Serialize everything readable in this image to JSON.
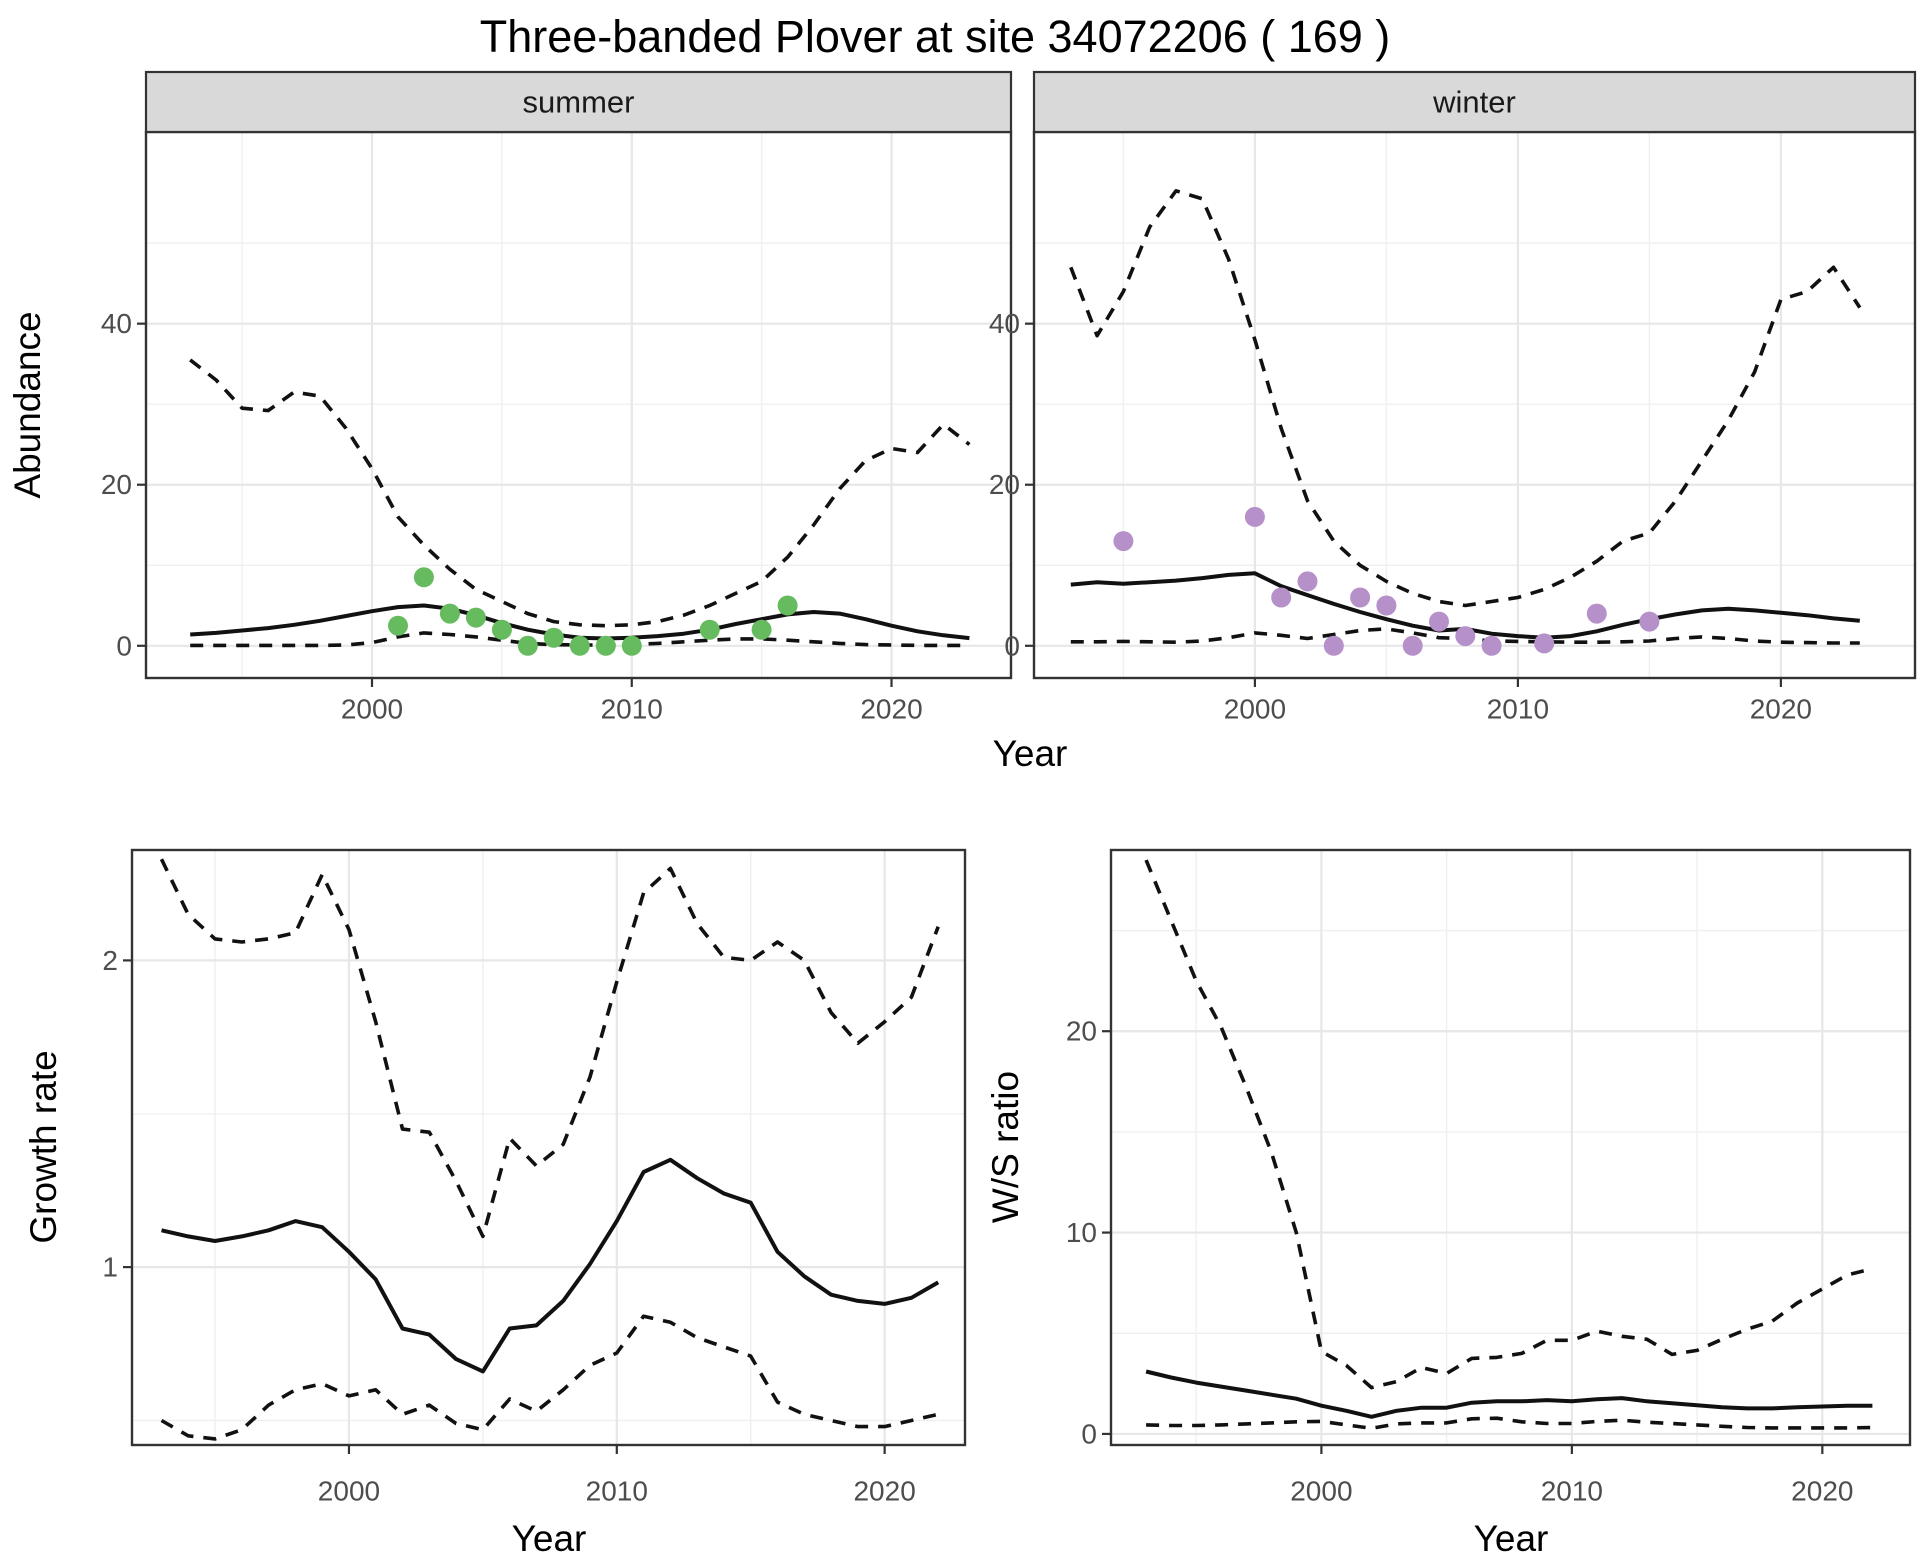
{
  "title": "Three-banded Plover at site 34072206 ( 169 )",
  "colors": {
    "summer_points": "#66BB5F",
    "winter_points": "#B690C9",
    "line": "#111111",
    "strip_fill": "#D9D9D9",
    "panel_border": "#333333",
    "grid_major": "#E7E7E7",
    "grid_minor": "#F0F0F0",
    "axis_text": "#4D4D4D",
    "tick_mark": "#333333"
  },
  "axes": {
    "top": {
      "x_title": "Year",
      "y_title": "Abundance"
    },
    "growth": {
      "x_title": "Year",
      "y_title": "Growth rate"
    },
    "ws": {
      "x_title": "Year",
      "y_title": "W/S ratio"
    }
  },
  "chart_data": [
    {
      "id": "summer",
      "type": "line",
      "facet_label": "summer",
      "xlabel": "Year",
      "ylabel": "Abundance",
      "xlim": [
        1991.3,
        2024.6
      ],
      "ylim": [
        -4,
        63.8
      ],
      "x_ticks": [
        2000,
        2010,
        2020
      ],
      "x_minor_ticks": [
        1995,
        2005,
        2015
      ],
      "y_ticks": [
        0,
        20,
        40
      ],
      "y_minor_ticks": [
        10,
        30,
        50
      ],
      "grid": true,
      "years": [
        1993,
        1994,
        1995,
        1996,
        1997,
        1998,
        1999,
        2000,
        2001,
        2002,
        2003,
        2004,
        2005,
        2006,
        2007,
        2008,
        2009,
        2010,
        2011,
        2012,
        2013,
        2014,
        2015,
        2016,
        2017,
        2018,
        2019,
        2020,
        2021,
        2022,
        2023
      ],
      "series": [
        {
          "name": "upper-95ci",
          "style": "dashed",
          "values": [
            35.5,
            33,
            29.5,
            29.2,
            31.5,
            31,
            27,
            22,
            16,
            12.5,
            9.5,
            7,
            5.5,
            4,
            3,
            2.6,
            2.5,
            2.6,
            3,
            3.8,
            5,
            6.5,
            8,
            11,
            15,
            19.5,
            23,
            24.5,
            24,
            27.5,
            25
          ]
        },
        {
          "name": "estimated-mean",
          "style": "solid",
          "values": [
            1.4,
            1.6,
            1.9,
            2.2,
            2.6,
            3.1,
            3.7,
            4.3,
            4.8,
            5.0,
            4.6,
            3.8,
            2.8,
            2.0,
            1.4,
            1.0,
            0.9,
            1.0,
            1.2,
            1.5,
            2.0,
            2.7,
            3.3,
            3.9,
            4.2,
            4.0,
            3.3,
            2.5,
            1.8,
            1.3,
            0.95
          ]
        },
        {
          "name": "lower-95ci",
          "style": "dashed",
          "values": [
            0.05,
            0.05,
            0.05,
            0.05,
            0.05,
            0.05,
            0.1,
            0.4,
            1.1,
            1.6,
            1.4,
            1.1,
            0.7,
            0.3,
            0.15,
            0.1,
            0.1,
            0.15,
            0.3,
            0.5,
            0.7,
            0.85,
            0.85,
            0.7,
            0.5,
            0.3,
            0.15,
            0.1,
            0.05,
            0.05,
            0.05
          ]
        }
      ],
      "points": {
        "name": "observed-counts",
        "color_key": "summer_points",
        "years": [
          2001,
          2002,
          2003,
          2004,
          2005,
          2006,
          2007,
          2008,
          2009,
          2010,
          2013,
          2015,
          2016
        ],
        "values": [
          2.5,
          8.5,
          4,
          3.5,
          2,
          0,
          1,
          0,
          0,
          0,
          2,
          2,
          5
        ]
      }
    },
    {
      "id": "winter",
      "type": "line",
      "facet_label": "winter",
      "xlabel": "Year",
      "ylabel": "Abundance",
      "xlim": [
        1991.6,
        2025.1
      ],
      "ylim": [
        -4,
        63.8
      ],
      "x_ticks": [
        2000,
        2010,
        2020
      ],
      "x_minor_ticks": [
        1995,
        2005,
        2015
      ],
      "y_ticks": [
        0,
        20,
        40
      ],
      "y_minor_ticks": [
        10,
        30,
        50
      ],
      "grid": true,
      "years": [
        1993,
        1994,
        1995,
        1996,
        1997,
        1998,
        1999,
        2000,
        2001,
        2002,
        2003,
        2004,
        2005,
        2006,
        2007,
        2008,
        2009,
        2010,
        2011,
        2012,
        2013,
        2014,
        2015,
        2016,
        2017,
        2018,
        2019,
        2020,
        2021,
        2022,
        2023
      ],
      "series": [
        {
          "name": "upper-95ci",
          "style": "dashed",
          "values": [
            47,
            38.5,
            44,
            52,
            56.5,
            55.5,
            48,
            38,
            27,
            18,
            13,
            10,
            8,
            6.5,
            5.5,
            5,
            5.5,
            6,
            7,
            8.5,
            10.5,
            13,
            14,
            18,
            23,
            28,
            34,
            43,
            44,
            47,
            42
          ]
        },
        {
          "name": "estimated-mean",
          "style": "solid",
          "values": [
            7.6,
            7.9,
            7.7,
            7.9,
            8.1,
            8.4,
            8.8,
            9.0,
            7.4,
            6.3,
            5.2,
            4.2,
            3.3,
            2.5,
            1.9,
            2.1,
            1.5,
            1.2,
            1.0,
            1.2,
            1.8,
            2.6,
            3.3,
            3.9,
            4.4,
            4.6,
            4.4,
            4.1,
            3.8,
            3.4,
            3.1
          ]
        },
        {
          "name": "lower-95ci",
          "style": "dashed",
          "values": [
            0.5,
            0.5,
            0.55,
            0.5,
            0.45,
            0.6,
            1.0,
            1.6,
            1.3,
            0.9,
            1.4,
            1.9,
            2.1,
            1.6,
            1.0,
            0.9,
            0.6,
            0.55,
            0.5,
            0.45,
            0.45,
            0.5,
            0.6,
            0.9,
            1.1,
            0.9,
            0.6,
            0.45,
            0.4,
            0.35,
            0.35
          ]
        }
      ],
      "points": {
        "name": "observed-counts",
        "color_key": "winter_points",
        "years": [
          1995,
          2000,
          2001,
          2002,
          2003,
          2004,
          2005,
          2006,
          2007,
          2008,
          2009,
          2011,
          2013,
          2015
        ],
        "values": [
          13,
          16,
          6,
          8,
          0,
          6,
          5,
          0,
          3,
          1.2,
          0,
          0.3,
          4,
          3
        ]
      }
    },
    {
      "id": "growth",
      "type": "line",
      "facet_label": null,
      "xlabel": "Year",
      "ylabel": "Growth rate",
      "xlim": [
        1991.9,
        2023.0
      ],
      "ylim": [
        0.42,
        2.36
      ],
      "x_ticks": [
        2000,
        2010,
        2020
      ],
      "x_minor_ticks": [
        1995,
        2005,
        2015
      ],
      "y_ticks": [
        1,
        2
      ],
      "y_minor_ticks": [
        0.5,
        1.5
      ],
      "grid": true,
      "years": [
        1993,
        1994,
        1995,
        1996,
        1997,
        1998,
        1999,
        2000,
        2001,
        2002,
        2003,
        2004,
        2005,
        2006,
        2007,
        2008,
        2009,
        2010,
        2011,
        2012,
        2013,
        2014,
        2015,
        2016,
        2017,
        2018,
        2019,
        2020,
        2021,
        2022
      ],
      "series": [
        {
          "name": "upper-95ci",
          "style": "dashed",
          "values": [
            2.33,
            2.15,
            2.07,
            2.06,
            2.07,
            2.09,
            2.28,
            2.1,
            1.8,
            1.45,
            1.44,
            1.28,
            1.1,
            1.42,
            1.33,
            1.4,
            1.62,
            1.93,
            2.22,
            2.3,
            2.12,
            2.01,
            2.0,
            2.06,
            2.0,
            1.83,
            1.73,
            1.8,
            1.88,
            2.11
          ]
        },
        {
          "name": "estimated-mean",
          "style": "solid",
          "values": [
            1.12,
            1.1,
            1.085,
            1.1,
            1.12,
            1.15,
            1.13,
            1.05,
            0.96,
            0.8,
            0.78,
            0.7,
            0.66,
            0.8,
            0.81,
            0.89,
            1.01,
            1.15,
            1.31,
            1.35,
            1.29,
            1.24,
            1.21,
            1.05,
            0.97,
            0.91,
            0.89,
            0.88,
            0.9,
            0.95
          ]
        },
        {
          "name": "lower-95ci",
          "style": "dashed",
          "values": [
            0.5,
            0.45,
            0.44,
            0.47,
            0.55,
            0.6,
            0.62,
            0.58,
            0.6,
            0.52,
            0.55,
            0.49,
            0.47,
            0.57,
            0.53,
            0.6,
            0.68,
            0.72,
            0.84,
            0.82,
            0.77,
            0.74,
            0.71,
            0.56,
            0.52,
            0.5,
            0.48,
            0.48,
            0.5,
            0.52
          ]
        }
      ],
      "points": null
    },
    {
      "id": "ws",
      "type": "line",
      "facet_label": null,
      "xlabel": "Year",
      "ylabel": "W/S ratio",
      "xlim": [
        1991.6,
        2023.5
      ],
      "ylim": [
        -0.55,
        29.0
      ],
      "x_ticks": [
        2000,
        2010,
        2020
      ],
      "x_minor_ticks": [
        1995,
        2005,
        2015
      ],
      "y_ticks": [
        0,
        10,
        20
      ],
      "y_minor_ticks": [
        5,
        15,
        25
      ],
      "grid": true,
      "years": [
        1993,
        1994,
        1995,
        1996,
        1997,
        1998,
        1999,
        2000,
        2001,
        2002,
        2003,
        2004,
        2005,
        2006,
        2007,
        2008,
        2009,
        2010,
        2011,
        2012,
        2013,
        2014,
        2015,
        2016,
        2017,
        2018,
        2019,
        2020,
        2021,
        2022
      ],
      "series": [
        {
          "name": "upper-95ci",
          "style": "dashed",
          "values": [
            28.5,
            25.5,
            22.5,
            20.2,
            17.2,
            14,
            10,
            4.1,
            3.4,
            2.3,
            2.6,
            3.3,
            3.0,
            3.75,
            3.8,
            4.0,
            4.65,
            4.65,
            5.1,
            4.85,
            4.7,
            3.95,
            4.15,
            4.7,
            5.2,
            5.6,
            6.5,
            7.2,
            7.9,
            8.2
          ]
        },
        {
          "name": "estimated-mean",
          "style": "solid",
          "values": [
            3.1,
            2.8,
            2.55,
            2.35,
            2.15,
            1.95,
            1.75,
            1.4,
            1.15,
            0.85,
            1.15,
            1.3,
            1.3,
            1.55,
            1.62,
            1.62,
            1.68,
            1.62,
            1.72,
            1.78,
            1.62,
            1.52,
            1.42,
            1.32,
            1.27,
            1.27,
            1.32,
            1.36,
            1.4,
            1.4
          ]
        },
        {
          "name": "lower-95ci",
          "style": "dashed",
          "values": [
            0.45,
            0.42,
            0.42,
            0.45,
            0.5,
            0.55,
            0.6,
            0.62,
            0.45,
            0.28,
            0.5,
            0.55,
            0.55,
            0.75,
            0.78,
            0.6,
            0.52,
            0.52,
            0.62,
            0.68,
            0.58,
            0.52,
            0.45,
            0.38,
            0.32,
            0.3,
            0.3,
            0.3,
            0.3,
            0.32
          ]
        }
      ],
      "points": null
    }
  ]
}
